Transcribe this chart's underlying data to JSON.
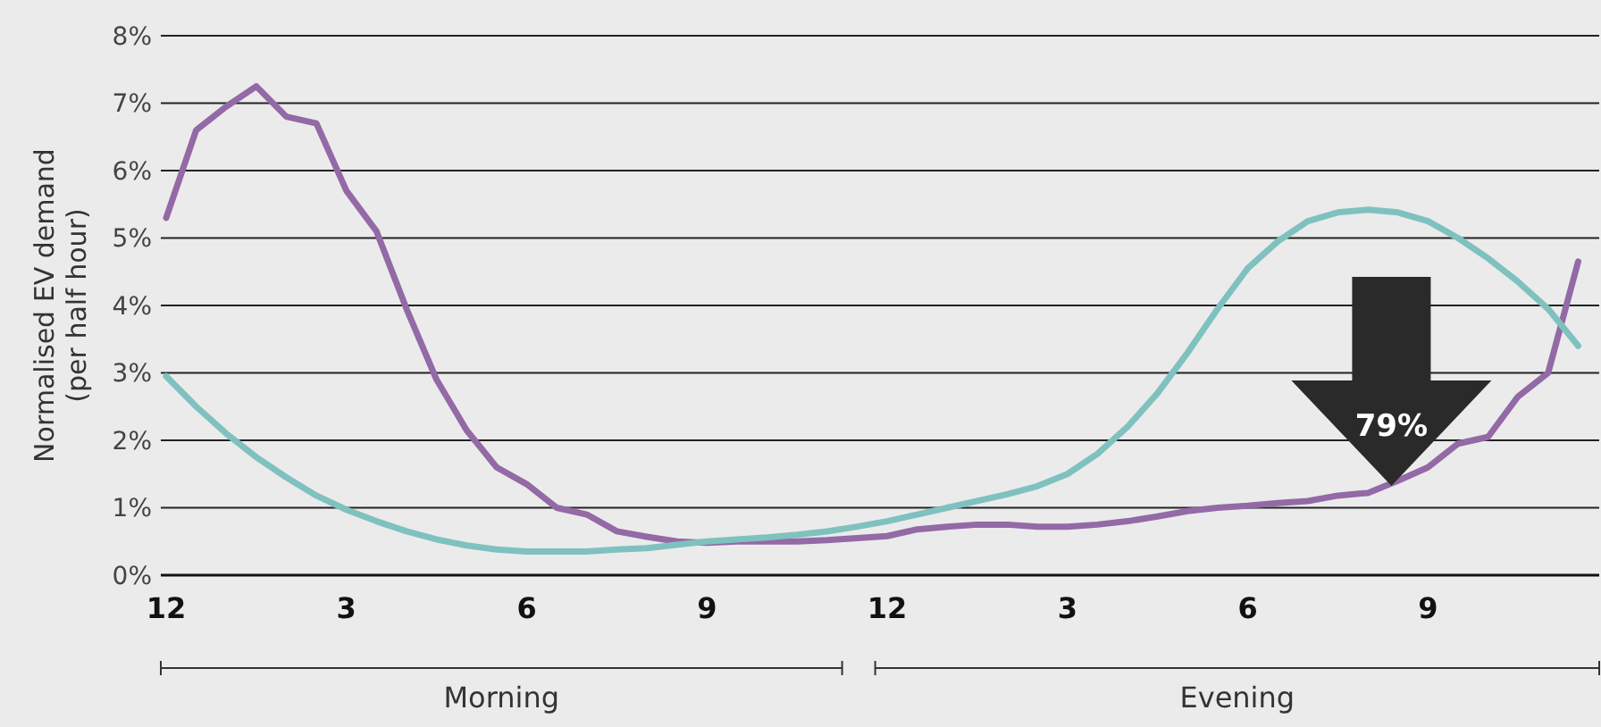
{
  "chart_data": {
    "type": "line",
    "ylabel": "Normalised EV demand (per half hour)",
    "categories": [
      "12",
      null,
      null,
      null,
      null,
      null,
      "3",
      null,
      null,
      null,
      null,
      null,
      "6",
      null,
      null,
      null,
      null,
      null,
      "9",
      null,
      null,
      null,
      null,
      null,
      "12",
      null,
      null,
      null,
      null,
      null,
      "3",
      null,
      null,
      null,
      null,
      null,
      "6",
      null,
      null,
      null,
      null,
      null,
      "9",
      null,
      null,
      null,
      null,
      null
    ],
    "series": [
      {
        "color": "#9369a6",
        "values": [
          5.3,
          6.6,
          6.95,
          7.25,
          6.8,
          6.7,
          5.7,
          5.1,
          3.95,
          2.9,
          2.15,
          1.6,
          1.35,
          1.0,
          0.9,
          0.65,
          0.57,
          0.5,
          0.48,
          0.5,
          0.5,
          0.5,
          0.52,
          0.55,
          0.58,
          0.68,
          0.72,
          0.75,
          0.75,
          0.72,
          0.72,
          0.75,
          0.8,
          0.87,
          0.95,
          1.0,
          1.03,
          1.07,
          1.1,
          1.18,
          1.22,
          1.4,
          1.6,
          1.95,
          2.05,
          2.65,
          3.0,
          4.65
        ]
      },
      {
        "color": "#7fc1bf",
        "values": [
          2.95,
          2.5,
          2.1,
          1.75,
          1.45,
          1.18,
          0.97,
          0.8,
          0.65,
          0.53,
          0.44,
          0.38,
          0.35,
          0.35,
          0.35,
          0.38,
          0.4,
          0.45,
          0.5,
          0.53,
          0.56,
          0.6,
          0.65,
          0.72,
          0.8,
          0.9,
          1.0,
          1.1,
          1.2,
          1.32,
          1.5,
          1.8,
          2.2,
          2.7,
          3.3,
          3.95,
          4.55,
          4.95,
          5.25,
          5.38,
          5.42,
          5.38,
          5.25,
          5.0,
          4.7,
          4.35,
          3.95,
          3.4
        ]
      }
    ],
    "ylim": [
      0,
      8
    ],
    "yticks": [
      {
        "value": 0,
        "label": "0%"
      },
      {
        "value": 1,
        "label": "1%"
      },
      {
        "value": 2,
        "label": "2%"
      },
      {
        "value": 3,
        "label": "3%"
      },
      {
        "value": 4,
        "label": "4%"
      },
      {
        "value": 5,
        "label": "5%"
      },
      {
        "value": 6,
        "label": "6%"
      },
      {
        "value": 7,
        "label": "7%"
      },
      {
        "value": 8,
        "label": "8%"
      }
    ],
    "grid": "y",
    "line_style": "solid",
    "annotations": [
      "79%",
      "Morning",
      "Evening"
    ]
  }
}
